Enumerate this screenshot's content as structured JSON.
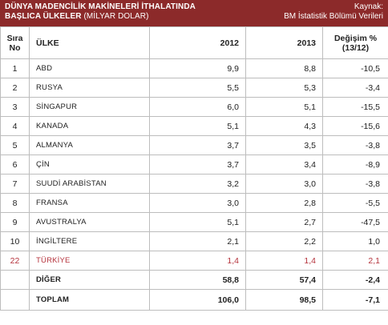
{
  "header": {
    "title_line1": "DÜNYA MADENCİLİK MAKİNELERİ İTHALATINDA",
    "title_line2_main": "BAŞLICA ÜLKELER",
    "title_line2_sub": " (MİLYAR DOLAR)",
    "source_label": "Kaynak:",
    "source_value": "BM İstatistik Bölümü Verileri"
  },
  "table": {
    "columns": {
      "rank_line1": "Sıra",
      "rank_line2": "No",
      "country": "ÜLKE",
      "y2012": "2012",
      "y2013": "2013",
      "change_line1": "Değişim %",
      "change_line2": "(13/12)"
    },
    "rows": [
      {
        "rank": "1",
        "country": "ABD",
        "y2012": "9,9",
        "y2013": "8,8",
        "change": "-10,5"
      },
      {
        "rank": "2",
        "country": "RUSYA",
        "y2012": "5,5",
        "y2013": "5,3",
        "change": "-3,4"
      },
      {
        "rank": "3",
        "country": "SİNGAPUR",
        "y2012": "6,0",
        "y2013": "5,1",
        "change": "-15,5"
      },
      {
        "rank": "4",
        "country": "KANADA",
        "y2012": "5,1",
        "y2013": "4,3",
        "change": "-15,6"
      },
      {
        "rank": "5",
        "country": "ALMANYA",
        "y2012": "3,7",
        "y2013": "3,5",
        "change": "-3,8"
      },
      {
        "rank": "6",
        "country": "ÇİN",
        "y2012": "3,7",
        "y2013": "3,4",
        "change": "-8,9"
      },
      {
        "rank": "7",
        "country": "SUUDİ ARABİSTAN",
        "y2012": "3,2",
        "y2013": "3,0",
        "change": "-3,8"
      },
      {
        "rank": "8",
        "country": "FRANSA",
        "y2012": "3,0",
        "y2013": "2,8",
        "change": "-5,5"
      },
      {
        "rank": "9",
        "country": "AVUSTRALYA",
        "y2012": "5,1",
        "y2013": "2,7",
        "change": "-47,5"
      },
      {
        "rank": "10",
        "country": "İNGİLTERE",
        "y2012": "2,1",
        "y2013": "2,2",
        "change": "1,0"
      },
      {
        "rank": "22",
        "country": "TÜRKİYE",
        "y2012": "1,4",
        "y2013": "1,4",
        "change": "2,1"
      }
    ],
    "other": {
      "rank": "",
      "country": "DİĞER",
      "y2012": "58,8",
      "y2013": "57,4",
      "change": "-2,4"
    },
    "total": {
      "rank": "",
      "country": "TOPLAM",
      "y2012": "106,0",
      "y2013": "98,5",
      "change": "-7,1"
    }
  },
  "colors": {
    "header_bg": "#8c2a2a",
    "highlight_text": "#b5333c",
    "grid": "#bdbdbd"
  }
}
